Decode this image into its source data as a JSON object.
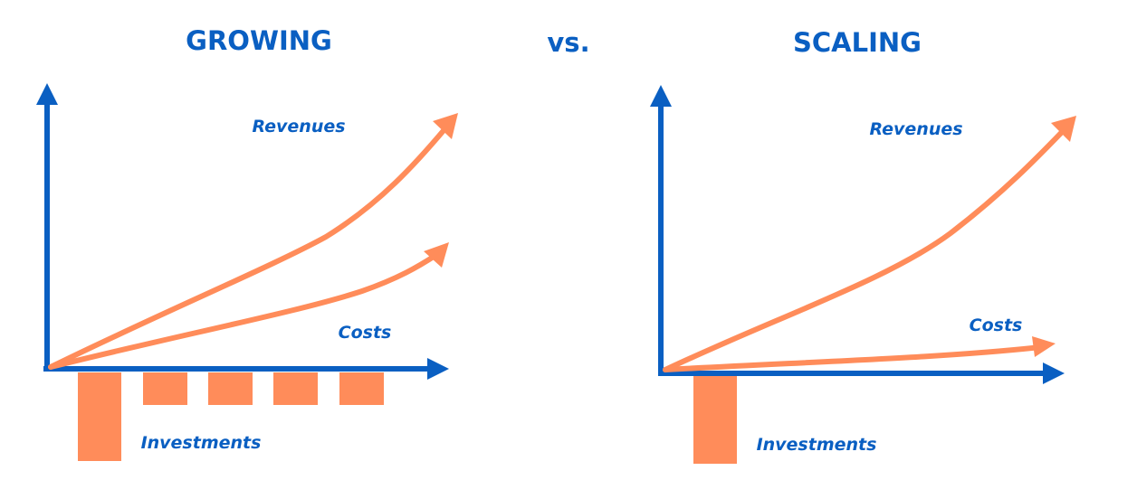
{
  "header": {
    "left_title": "GROWING",
    "middle": "vs.",
    "right_title": "SCALING"
  },
  "growing": {
    "revenues": "Revenues",
    "costs": "Costs",
    "investments": "Investments"
  },
  "scaling": {
    "revenues": "Revenues",
    "costs": "Costs",
    "investments": "Investments"
  }
}
